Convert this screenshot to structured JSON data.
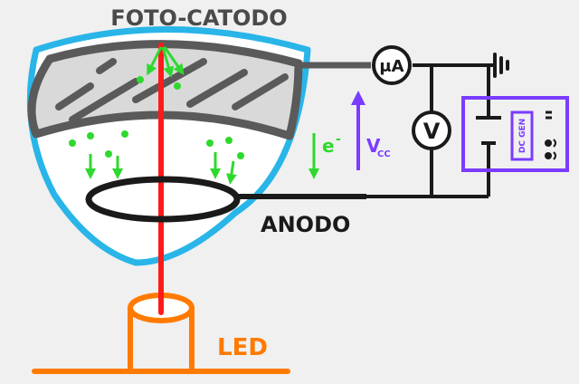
{
  "labels": {
    "photocathode": "FOTO-CATODO",
    "anode": "ANODO",
    "led": "LED",
    "electron": "e",
    "electron_sup": "-",
    "voltage_main": "V",
    "voltage_sub": "CC",
    "ammeter": "μA",
    "voltmeter": "V",
    "dc_gen": "DC GEN"
  },
  "colors": {
    "background": "#f0f0f0",
    "glass_outline": "#29b5e8",
    "glass_fill": "#ffffff",
    "cathode_fill": "#d9d9d9",
    "cathode_stroke": "#5a5a5a",
    "light_beam": "#ff1a1a",
    "electron_green": "#2ed92e",
    "voltage_purple": "#7a3cff",
    "led_orange": "#ff7a00",
    "wire": "#1a1a1a"
  },
  "icons": {
    "ground": "ground-icon",
    "battery": "battery-icon",
    "ammeter": "ammeter-icon",
    "voltmeter": "voltmeter-icon"
  }
}
